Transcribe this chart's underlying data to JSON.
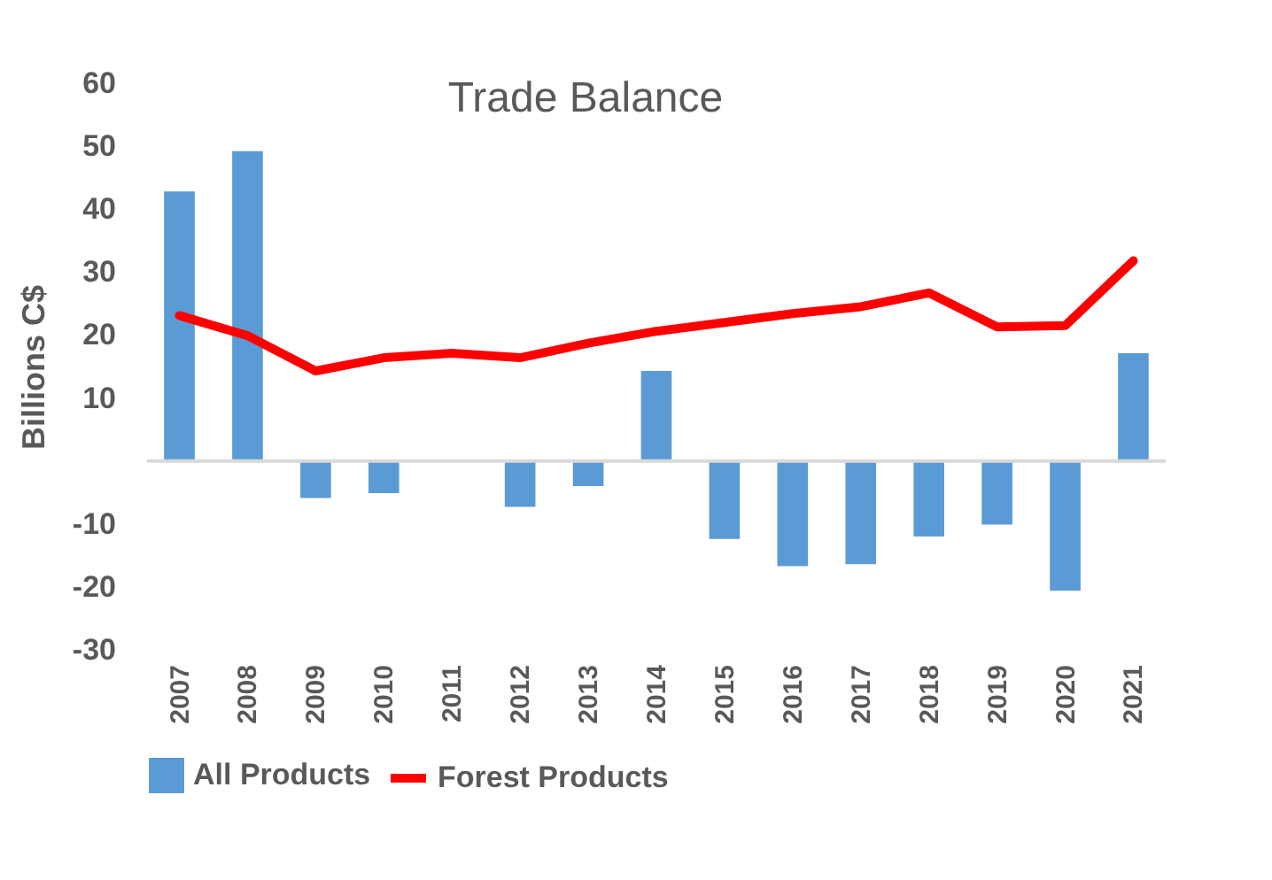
{
  "chart_data": {
    "type": "bar",
    "title": "Trade Balance",
    "ylabel": "Billions C$",
    "categories": [
      "2007",
      "2008",
      "2009",
      "2010",
      "2011",
      "2012",
      "2013",
      "2014",
      "2015",
      "2016",
      "2017",
      "2018",
      "2019",
      "2020",
      "2021"
    ],
    "series": [
      {
        "name": "All Products",
        "color": "#5b9bd5",
        "values": [
          42.8,
          49.2,
          -5.9,
          -5.1,
          null,
          -7.3,
          -4.0,
          14.3,
          -12.4,
          -16.7,
          -16.4,
          -12.0,
          -10.1,
          -20.6,
          17.1
        ]
      },
      {
        "name": "Forest Products",
        "type": "line",
        "color": "#ff0000",
        "values": [
          23.1,
          19.9,
          14.3,
          16.4,
          17.1,
          16.4,
          18.7,
          20.6,
          22.0,
          23.4,
          24.5,
          26.7,
          21.3,
          21.5,
          31.8
        ]
      }
    ],
    "ylim": [
      -30,
      60
    ],
    "yticks": [
      -30,
      -20,
      -10,
      10,
      20,
      30,
      40,
      50,
      60
    ],
    "grid": false,
    "legend": "bottom",
    "marker": "none",
    "line_style": "solid"
  }
}
